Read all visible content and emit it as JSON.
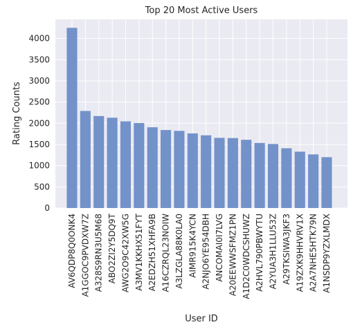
{
  "chart_data": {
    "type": "bar",
    "title": "Top 20 Most Active Users",
    "xlabel": "User ID",
    "ylabel": "Rating Counts",
    "ylim": [
      0,
      4450
    ],
    "yticks": [
      0,
      500,
      1000,
      1500,
      2000,
      2500,
      3000,
      3500,
      4000
    ],
    "grid": true,
    "categories": [
      "AV6QDP8Q0ONK4",
      "A1GGOC9PVDXW7Z",
      "A328S9RN3U5M68",
      "ABO2ZI2Y5DQ9T",
      "AWG2O9C42XW5G",
      "A3MV1KKHX51FYT",
      "A2EDZH51XHFA9B",
      "A16CZRQL23NOIW",
      "A3LZGLA88K0LA0",
      "AIMR915K4YCN",
      "A2NJO6YE954DBH",
      "ANCOMAI0I7LVG",
      "A20EEWWSFMZ1PN",
      "A1D2C0WDCSHUWZ",
      "A2HVL790PBWYTU",
      "A2YUA3H1LLU53Z",
      "A29TKSIWA3JKF3",
      "A19ZXK9HHVRV1X",
      "A2A7NHE5HTK79N",
      "A1NSDP9YZXLMDX"
    ],
    "values": [
      4250,
      2290,
      2170,
      2130,
      2045,
      2005,
      1905,
      1840,
      1820,
      1760,
      1715,
      1655,
      1650,
      1610,
      1535,
      1510,
      1410,
      1330,
      1265,
      1200
    ],
    "colors": {
      "bar": "#7392c9",
      "plot_bg": "#eaeaf2",
      "grid": "#ffffff"
    }
  }
}
